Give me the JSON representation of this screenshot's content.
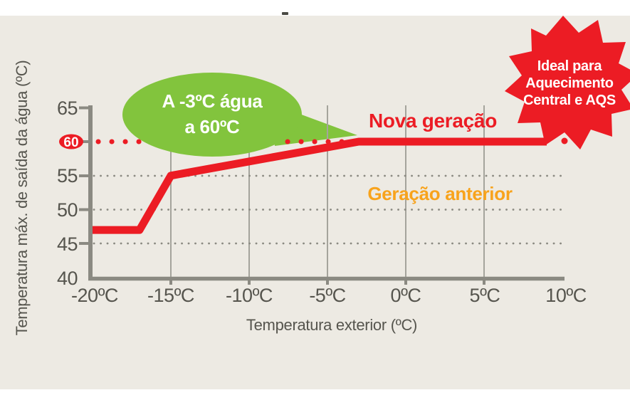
{
  "page": {
    "background_color": "#edeae3",
    "outer_background_color": "#ffffff"
  },
  "colors": {
    "accent_red": "#ec1c24",
    "accent_green": "#82c43d",
    "accent_orange": "#f8a31c",
    "axis_gray": "#8b8a82",
    "gridline_gray": "#a5a49c",
    "label_gray": "#56554e"
  },
  "chart_data": {
    "type": "line",
    "title": "",
    "xlabel": "Temperatura exterior (ºC)",
    "ylabel": "Temperatura máx. de saída da água (ºC)",
    "x_ticks": [
      "-20ºC",
      "-15ºC",
      "-10ºC",
      "-5ºC",
      "0ºC",
      "5ºC",
      "10ºC"
    ],
    "x_tick_values": [
      -20,
      -15,
      -10,
      -5,
      0,
      5,
      10
    ],
    "y_ticks": [
      "40",
      "45",
      "50",
      "55",
      "60",
      "65"
    ],
    "xlim": [
      -20,
      10
    ],
    "ylim": [
      40,
      65
    ],
    "grid": {
      "horizontal_dotted_at": [
        45,
        50,
        55
      ],
      "vertical_solid_at": [
        -15,
        -10,
        -5,
        0,
        5
      ],
      "legend_position": "none"
    },
    "highlighted_y_tick": {
      "value": "60",
      "badge_color": "#ec1c24",
      "text_color": "#ffffff"
    },
    "series": [
      {
        "name": "Nova geração",
        "color": "#ec1c24",
        "style": "solid",
        "points": [
          [
            -20,
            47
          ],
          [
            -17,
            47
          ],
          [
            -15,
            55
          ],
          [
            -3,
            60
          ],
          [
            10,
            60
          ]
        ]
      }
    ],
    "guides": [
      {
        "type": "dotted-line",
        "y": 60,
        "x_from": -19.6,
        "x_to": -3.3,
        "color": "#ec1c24"
      },
      {
        "type": "end-dot",
        "x": 10,
        "y": 60,
        "color": "#ec1c24"
      }
    ],
    "annotations": [
      {
        "text": "Geração anterior",
        "color": "#f8a31c",
        "x": 2,
        "y": 52.5
      }
    ]
  },
  "annotations": {
    "bubble": {
      "line1": "A -3ºC água",
      "line2": "a 60ºC",
      "bg_color": "#82c43d",
      "text_color": "#ffffff"
    },
    "badge": {
      "line1": "Ideal para",
      "line2": "Aquecimento",
      "line3": "Central e AQS",
      "bg_color": "#ec1c24",
      "text_color": "#ffffff"
    }
  }
}
